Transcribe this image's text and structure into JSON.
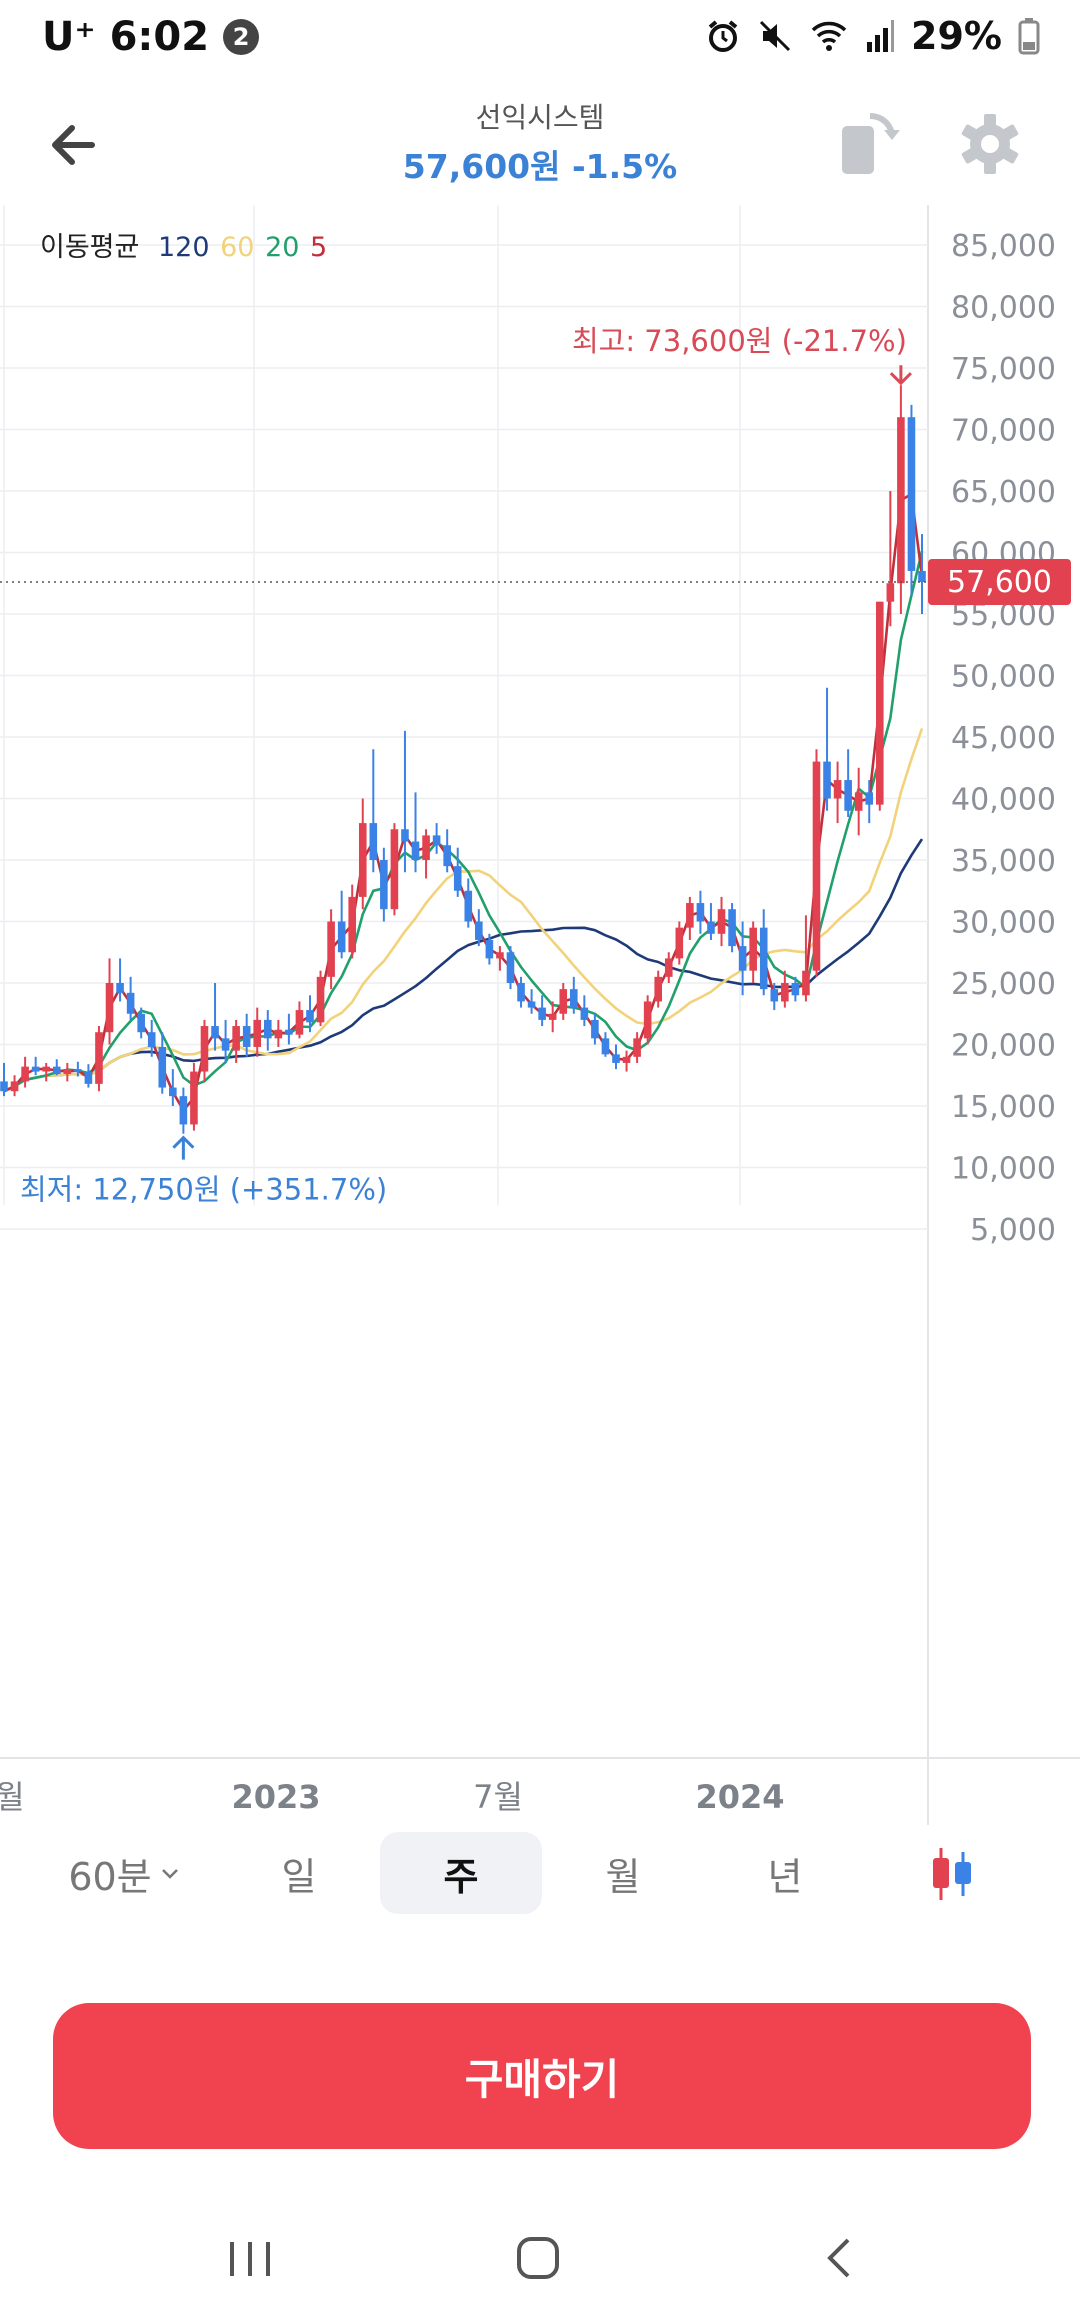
{
  "status": {
    "carrier": "U⁺",
    "time": "6:02",
    "notification_count": "2",
    "battery": "29%"
  },
  "header": {
    "stock_name": "선익시스템",
    "price_line": "57,600원 -1.5%"
  },
  "chart": {
    "ma_legend": {
      "label": "이동평균",
      "ma120": "120",
      "ma60": "60",
      "ma20": "20",
      "ma5": "5",
      "colors": {
        "ma120": "#1e3a78",
        "ma60": "#f2d27a",
        "ma20": "#22a06b",
        "ma5": "#c0303c"
      }
    },
    "current_price_tag": "57,600",
    "high_label": "최고: 73,600원 (-21.7%)",
    "low_label": "최저: 12,750원 (+351.7%)",
    "x_labels": [
      "월",
      "2023",
      "7월",
      "2024"
    ]
  },
  "chart_data": {
    "type": "candlestick",
    "interval": "주",
    "y_ticks": [
      5000,
      10000,
      15000,
      20000,
      25000,
      30000,
      35000,
      40000,
      45000,
      50000,
      55000,
      60000,
      65000,
      70000,
      75000,
      80000,
      85000
    ],
    "ylim": [
      0,
      87000
    ],
    "x_ticks": [
      "월",
      "2023",
      "7월",
      "2024"
    ],
    "current_price": 57600,
    "high": 73600,
    "low": 12750,
    "up_color": "#e2424f",
    "down_color": "#3b82e6",
    "candles": [
      [
        17000,
        18500,
        15800,
        16200
      ],
      [
        16200,
        17500,
        15800,
        17000
      ],
      [
        17000,
        19000,
        16500,
        18200
      ],
      [
        18200,
        19000,
        17500,
        17800
      ],
      [
        17800,
        18500,
        17000,
        18200
      ],
      [
        18200,
        18800,
        17500,
        17600
      ],
      [
        17600,
        18500,
        17000,
        18000
      ],
      [
        18000,
        18600,
        17400,
        17800
      ],
      [
        17800,
        18400,
        16500,
        16800
      ],
      [
        16800,
        21500,
        16200,
        21000
      ],
      [
        21000,
        27000,
        20000,
        25000
      ],
      [
        25000,
        27000,
        23500,
        24200
      ],
      [
        24200,
        25500,
        22000,
        22500
      ],
      [
        22500,
        23000,
        20500,
        21000
      ],
      [
        21000,
        22000,
        19000,
        19800
      ],
      [
        19800,
        21000,
        16000,
        16500
      ],
      [
        16500,
        18000,
        15000,
        15800
      ],
      [
        15800,
        16500,
        12750,
        13500
      ],
      [
        13500,
        18500,
        13000,
        17800
      ],
      [
        17800,
        22000,
        17000,
        21500
      ],
      [
        21500,
        25000,
        19500,
        20500
      ],
      [
        20500,
        22000,
        18500,
        19500
      ],
      [
        19500,
        22000,
        18500,
        21500
      ],
      [
        21500,
        22500,
        19000,
        19800
      ],
      [
        19800,
        23000,
        19000,
        22000
      ],
      [
        22000,
        22800,
        19500,
        20500
      ],
      [
        20500,
        22000,
        19800,
        21200
      ],
      [
        21200,
        22500,
        20000,
        20800
      ],
      [
        20800,
        23500,
        20500,
        22800
      ],
      [
        22800,
        24000,
        21000,
        21800
      ],
      [
        21800,
        26000,
        21500,
        25500
      ],
      [
        25500,
        31000,
        24500,
        30000
      ],
      [
        30000,
        32500,
        27000,
        27500
      ],
      [
        27500,
        33000,
        27000,
        32000
      ],
      [
        32000,
        40000,
        31000,
        38000
      ],
      [
        38000,
        44000,
        34000,
        35000
      ],
      [
        35000,
        36000,
        30000,
        31000
      ],
      [
        31000,
        38000,
        30500,
        37500
      ],
      [
        37500,
        45500,
        34000,
        36500
      ],
      [
        36500,
        40500,
        34000,
        35000
      ],
      [
        35000,
        37500,
        33500,
        37000
      ],
      [
        37000,
        38000,
        35500,
        36200
      ],
      [
        36200,
        37500,
        34000,
        34500
      ],
      [
        34500,
        36000,
        32000,
        32500
      ],
      [
        32500,
        33500,
        29500,
        30000
      ],
      [
        30000,
        31000,
        28000,
        28500
      ],
      [
        28500,
        29000,
        26500,
        27000
      ],
      [
        27000,
        28000,
        26000,
        27500
      ],
      [
        27500,
        28000,
        24500,
        25000
      ],
      [
        25000,
        25500,
        23000,
        23500
      ],
      [
        23500,
        24500,
        22500,
        23000
      ],
      [
        23000,
        24000,
        21500,
        22000
      ],
      [
        22000,
        23500,
        21000,
        22500
      ],
      [
        22500,
        25000,
        22000,
        24500
      ],
      [
        24500,
        25500,
        22500,
        23000
      ],
      [
        23000,
        24000,
        21500,
        22000
      ],
      [
        22000,
        22500,
        20000,
        20500
      ],
      [
        20500,
        21000,
        19000,
        19200
      ],
      [
        19200,
        20000,
        18000,
        18500
      ],
      [
        18500,
        19500,
        17800,
        19000
      ],
      [
        19000,
        21000,
        18500,
        20500
      ],
      [
        20500,
        24000,
        20000,
        23500
      ],
      [
        23500,
        26000,
        23000,
        25500
      ],
      [
        25500,
        27500,
        25000,
        27000
      ],
      [
        27000,
        30000,
        26500,
        29500
      ],
      [
        29500,
        32000,
        28500,
        31500
      ],
      [
        31500,
        32500,
        29000,
        30000
      ],
      [
        30000,
        31500,
        28500,
        29000
      ],
      [
        29000,
        32000,
        28000,
        31000
      ],
      [
        31000,
        31500,
        27500,
        28000
      ],
      [
        28000,
        30000,
        24000,
        26000
      ],
      [
        26000,
        30000,
        25000,
        29500
      ],
      [
        29500,
        31000,
        24000,
        24500
      ],
      [
        24500,
        25000,
        22800,
        23500
      ],
      [
        23500,
        26000,
        23000,
        25000
      ],
      [
        25000,
        25500,
        23500,
        24000
      ],
      [
        24000,
        30500,
        23500,
        26000
      ],
      [
        26000,
        44000,
        25500,
        43000
      ],
      [
        43000,
        49000,
        39000,
        40000
      ],
      [
        40000,
        43000,
        38000,
        41500
      ],
      [
        41500,
        44000,
        38500,
        39000
      ],
      [
        39000,
        42500,
        37000,
        40500
      ],
      [
        40500,
        41500,
        38000,
        39500
      ],
      [
        39500,
        56000,
        39000,
        56000
      ],
      [
        56000,
        65000,
        54000,
        57500
      ],
      [
        57500,
        73600,
        55000,
        71000
      ],
      [
        71000,
        72000,
        56500,
        58500
      ],
      [
        58500,
        61500,
        55000,
        57600
      ]
    ]
  },
  "period_tabs": [
    "60분",
    "일",
    "주",
    "월",
    "년"
  ],
  "active_period": "주",
  "buy_button": "구매하기"
}
